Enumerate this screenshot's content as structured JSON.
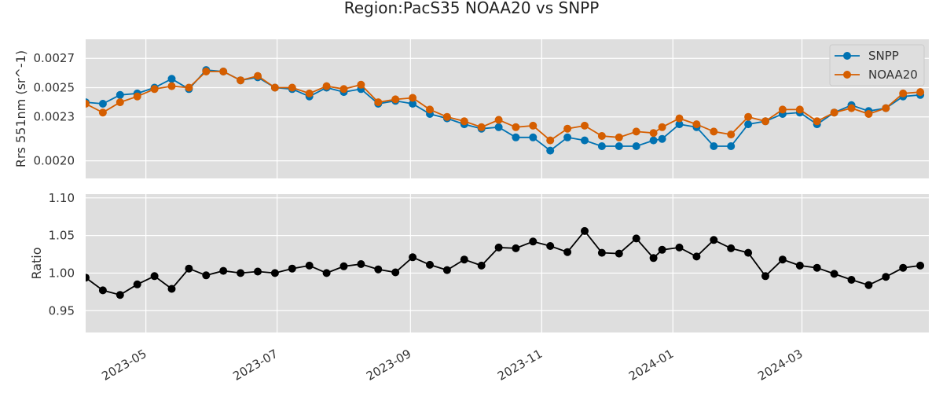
{
  "title": "Region:PacS35 NOAA20 vs SNPP",
  "colors": {
    "snpp": "#0072b2",
    "noaa20": "#d55e00",
    "ratio": "#000000",
    "panel_bg": "#dedede",
    "grid": "#ffffff"
  },
  "chart_data": [
    {
      "type": "line",
      "ylabel": "Rrs 551nm (sr^-1)",
      "ylim": [
        0.00188,
        0.00283
      ],
      "yticks": [
        0.002,
        0.0023,
        0.0025,
        0.0027
      ],
      "ytick_labels": [
        "0.0020",
        "0.0023",
        "0.0025",
        "0.0027"
      ],
      "xlim": [
        "2023-04-03",
        "2024-04-29"
      ],
      "grid": true,
      "legend": "top-right",
      "x": [
        "2023-04-03",
        "2023-04-11",
        "2023-04-19",
        "2023-04-27",
        "2023-05-05",
        "2023-05-13",
        "2023-05-21",
        "2023-05-29",
        "2023-06-06",
        "2023-06-14",
        "2023-06-22",
        "2023-06-30",
        "2023-07-08",
        "2023-07-16",
        "2023-07-24",
        "2023-08-01",
        "2023-08-09",
        "2023-08-17",
        "2023-08-25",
        "2023-09-02",
        "2023-09-10",
        "2023-09-18",
        "2023-09-26",
        "2023-10-04",
        "2023-10-12",
        "2023-10-20",
        "2023-10-28",
        "2023-11-05",
        "2023-11-13",
        "2023-11-21",
        "2023-11-29",
        "2023-12-07",
        "2023-12-15",
        "2023-12-23",
        "2023-12-27",
        "2024-01-04",
        "2024-01-12",
        "2024-01-20",
        "2024-01-28",
        "2024-02-05",
        "2024-02-13",
        "2024-02-21",
        "2024-02-29",
        "2024-03-08",
        "2024-03-16",
        "2024-03-24",
        "2024-04-01",
        "2024-04-09",
        "2024-04-17",
        "2024-04-25"
      ],
      "series": [
        {
          "name": "SNPP",
          "values": [
            0.0024,
            0.00239,
            0.00245,
            0.00246,
            0.0025,
            0.00256,
            0.00249,
            0.00262,
            0.00261,
            0.00255,
            0.00257,
            0.0025,
            0.00249,
            0.00244,
            0.0025,
            0.00247,
            0.00249,
            0.00239,
            0.00241,
            0.00239,
            0.00232,
            0.00229,
            0.00225,
            0.00222,
            0.00223,
            0.00216,
            0.00216,
            0.00207,
            0.00216,
            0.00214,
            0.0021,
            0.0021,
            0.0021,
            0.00214,
            0.00215,
            0.00225,
            0.00223,
            0.0021,
            0.0021,
            0.00225,
            0.00227,
            0.00232,
            0.00233,
            0.00225,
            0.00233,
            0.00238,
            0.00234,
            0.00236,
            0.00244,
            0.00245
          ]
        },
        {
          "name": "NOAA20",
          "values": [
            0.00239,
            0.00233,
            0.0024,
            0.00244,
            0.00249,
            0.00251,
            0.0025,
            0.00261,
            0.00261,
            0.00255,
            0.00258,
            0.0025,
            0.0025,
            0.00246,
            0.00251,
            0.00249,
            0.00252,
            0.0024,
            0.00242,
            0.00243,
            0.00235,
            0.0023,
            0.00227,
            0.00223,
            0.00228,
            0.00223,
            0.00224,
            0.00214,
            0.00222,
            0.00224,
            0.00217,
            0.00216,
            0.0022,
            0.00219,
            0.00223,
            0.00229,
            0.00225,
            0.0022,
            0.00218,
            0.0023,
            0.00227,
            0.00235,
            0.00235,
            0.00227,
            0.00233,
            0.00236,
            0.00232,
            0.00236,
            0.00246,
            0.00247
          ]
        }
      ]
    },
    {
      "type": "line",
      "ylabel": "Ratio",
      "ylim": [
        0.921,
        1.105
      ],
      "yticks": [
        0.95,
        1.0,
        1.05,
        1.1
      ],
      "ytick_labels": [
        "0.95",
        "1.00",
        "1.05",
        "1.10"
      ],
      "xlim": [
        "2023-04-03",
        "2024-04-29"
      ],
      "grid": true,
      "xtick_dates": [
        "2023-05-01",
        "2023-07-01",
        "2023-09-01",
        "2023-11-01",
        "2024-01-01",
        "2024-03-01"
      ],
      "xtick_labels": [
        "2023-05",
        "2023-07",
        "2023-09",
        "2023-11",
        "2024-01",
        "2024-03"
      ],
      "x": [
        "2023-04-03",
        "2023-04-11",
        "2023-04-19",
        "2023-04-27",
        "2023-05-05",
        "2023-05-13",
        "2023-05-21",
        "2023-05-29",
        "2023-06-06",
        "2023-06-14",
        "2023-06-22",
        "2023-06-30",
        "2023-07-08",
        "2023-07-16",
        "2023-07-24",
        "2023-08-01",
        "2023-08-09",
        "2023-08-17",
        "2023-08-25",
        "2023-09-02",
        "2023-09-10",
        "2023-09-18",
        "2023-09-26",
        "2023-10-04",
        "2023-10-12",
        "2023-10-20",
        "2023-10-28",
        "2023-11-05",
        "2023-11-13",
        "2023-11-21",
        "2023-11-29",
        "2023-12-07",
        "2023-12-15",
        "2023-12-23",
        "2023-12-27",
        "2024-01-04",
        "2024-01-12",
        "2024-01-20",
        "2024-01-28",
        "2024-02-05",
        "2024-02-13",
        "2024-02-21",
        "2024-02-29",
        "2024-03-08",
        "2024-03-16",
        "2024-03-24",
        "2024-04-01",
        "2024-04-09",
        "2024-04-17",
        "2024-04-25"
      ],
      "series": [
        {
          "values": [
            0.994,
            0.977,
            0.971,
            0.985,
            0.996,
            0.979,
            1.006,
            0.997,
            1.003,
            1.0,
            1.002,
            1.0,
            1.006,
            1.01,
            1.0,
            1.009,
            1.012,
            1.005,
            1.001,
            1.021,
            1.011,
            1.004,
            1.018,
            1.01,
            1.034,
            1.033,
            1.042,
            1.036,
            1.028,
            1.056,
            1.027,
            1.026,
            1.046,
            1.02,
            1.031,
            1.034,
            1.022,
            1.044,
            1.033,
            1.027,
            0.996,
            1.018,
            1.01,
            1.007,
            0.999,
            0.991,
            0.984,
            0.995,
            1.007,
            1.01
          ]
        }
      ]
    }
  ]
}
